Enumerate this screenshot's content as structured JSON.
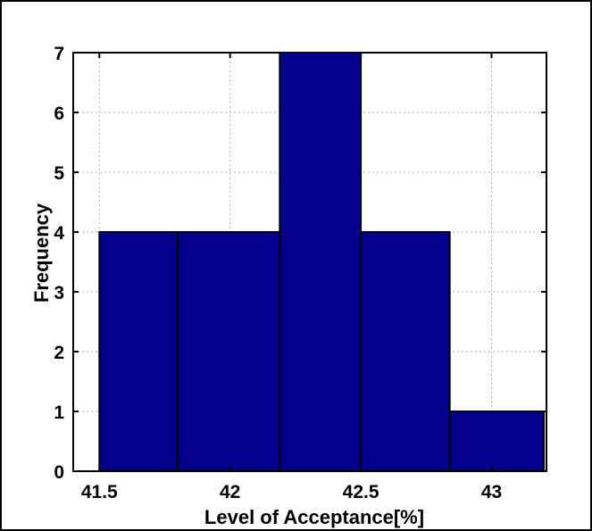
{
  "chart_data": {
    "type": "bar",
    "subtype": "histogram",
    "bins": [
      {
        "x0": 41.5,
        "x1": 41.8,
        "value": 4
      },
      {
        "x0": 41.8,
        "x1": 42.19,
        "value": 4
      },
      {
        "x0": 42.19,
        "x1": 42.5,
        "value": 7
      },
      {
        "x0": 42.5,
        "x1": 42.84,
        "value": 4
      },
      {
        "x0": 42.84,
        "x1": 43.2,
        "value": 1
      }
    ],
    "xlabel": "Level of Acceptance[%]",
    "ylabel": "Frequency",
    "xlim": [
      41.4,
      43.21
    ],
    "ylim": [
      0,
      7
    ],
    "xticks": [
      41.5,
      42,
      42.5,
      43
    ],
    "xtick_labels": [
      "41.5",
      "42",
      "42.5",
      "43"
    ],
    "yticks": [
      0,
      1,
      2,
      3,
      4,
      5,
      6,
      7
    ],
    "ytick_labels": [
      "0",
      "1",
      "2",
      "3",
      "4",
      "5",
      "6",
      "7"
    ],
    "grid": true,
    "bar_color": "#00008b",
    "edge_color": "#000000"
  }
}
